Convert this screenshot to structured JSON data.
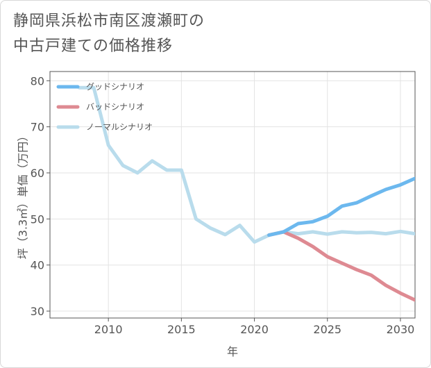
{
  "title_lines": [
    "静岡県浜松市南区渡瀬町の",
    "中古戸建ての価格推移"
  ],
  "chart_data": {
    "type": "line",
    "title": "静岡県浜松市南区渡瀬町の中古戸建ての価格推移",
    "xlabel": "年",
    "ylabel": "坪（3.3㎡）単価（万円）",
    "xlim": [
      2006,
      2031
    ],
    "ylim": [
      28.5,
      82
    ],
    "xticks": [
      2010,
      2015,
      2020,
      2025,
      2030
    ],
    "yticks": [
      30,
      40,
      50,
      60,
      70,
      80
    ],
    "grid": true,
    "legend_position": "top-left",
    "series": [
      {
        "name": "グッドシナリオ",
        "color": "#6cb8ee",
        "x": [
          2021,
          2022,
          2023,
          2024,
          2025,
          2026,
          2027,
          2028,
          2029,
          2030,
          2031
        ],
        "values": [
          46.5,
          47.2,
          49.0,
          49.4,
          50.6,
          52.8,
          53.5,
          55.0,
          56.4,
          57.4,
          58.8
        ]
      },
      {
        "name": "バッドシナリオ",
        "color": "#de8a92",
        "x": [
          2021,
          2022,
          2023,
          2024,
          2025,
          2026,
          2027,
          2028,
          2029,
          2030,
          2031
        ],
        "values": [
          46.5,
          47.2,
          45.8,
          44.0,
          41.8,
          40.4,
          39.0,
          37.8,
          35.6,
          33.9,
          32.4
        ]
      },
      {
        "name": "ノーマルシナリオ",
        "color": "#b9dcec",
        "x": [
          2008,
          2009,
          2010,
          2011,
          2012,
          2013,
          2014,
          2015,
          2016,
          2017,
          2018,
          2019,
          2020,
          2021,
          2022,
          2023,
          2024,
          2025,
          2026,
          2027,
          2028,
          2029,
          2030,
          2031
        ],
        "values": [
          78.5,
          78.5,
          66.0,
          61.6,
          60.0,
          62.6,
          60.6,
          60.6,
          50.0,
          48.0,
          46.6,
          48.6,
          45.0,
          46.5,
          47.2,
          46.8,
          47.2,
          46.7,
          47.2,
          47.0,
          47.1,
          46.8,
          47.3,
          46.8
        ]
      }
    ]
  }
}
